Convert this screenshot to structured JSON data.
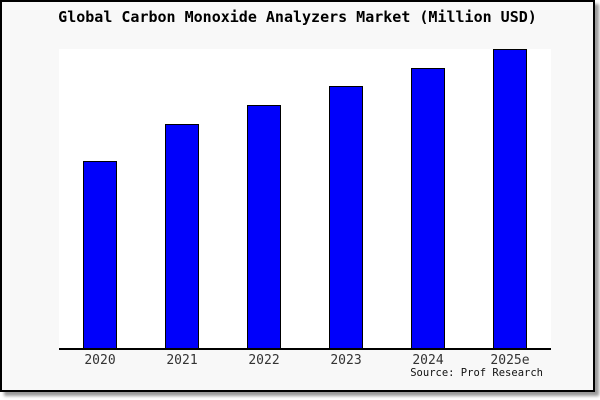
{
  "title": "Global Carbon Monoxide Analyzers Market (Million USD)",
  "source_note": "Source: Prof Research",
  "colors": {
    "bar_fill": "#0000fb",
    "bar_border": "#000000",
    "frame_background": "#f8f8f8",
    "plot_background": "#ffffff",
    "axis_line": "#000000",
    "tick_label": "#333333",
    "title_text": "#000000"
  },
  "chart_data": {
    "type": "bar",
    "title": "Global Carbon Monoxide Analyzers Market (Million USD)",
    "categories": [
      "2020",
      "2021",
      "2022",
      "2023",
      "2024",
      "2025e"
    ],
    "values": [
      100,
      120,
      130,
      140,
      150,
      160
    ],
    "xlabel": "",
    "ylabel": "",
    "ylim": [
      0,
      160
    ],
    "y_axis_visible": false,
    "grid": false,
    "legend": false,
    "values_note": "y-axis is unlabeled in the image; values are relative estimates read from bar heights (proportions 0.625 : 0.75 : 0.8125 : 0.875 : 0.9375 : 1.0)"
  }
}
